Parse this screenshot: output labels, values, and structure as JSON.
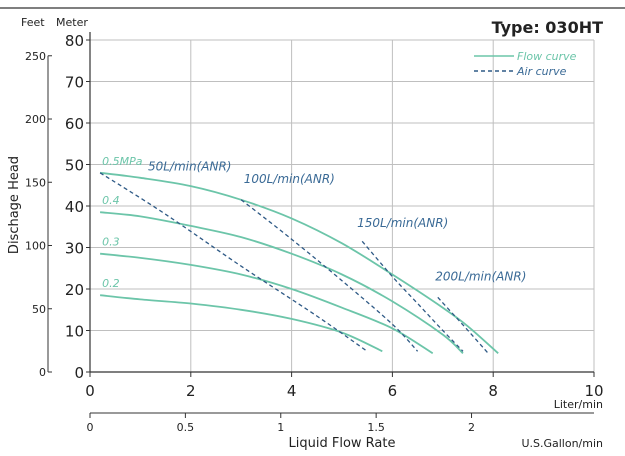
{
  "chart_data": {
    "type": "line",
    "title": "Type: 030HT",
    "ylabel": "Dischage Head",
    "y_units": {
      "feet": "Feet",
      "meter": "Meter"
    },
    "x_primary_unit": "Liter/min",
    "x_secondary_unit": "U.S.Gallon/min",
    "xlabel": "Liquid Flow Rate",
    "xlim": [
      0,
      10
    ],
    "ylim": [
      0,
      80
    ],
    "x_ticks": [
      0,
      2,
      4,
      6,
      8,
      10
    ],
    "y_meter_ticks": [
      0,
      10,
      20,
      30,
      40,
      50,
      60,
      70,
      80
    ],
    "y_feet_ticks": [
      0,
      50,
      100,
      150,
      200,
      250
    ],
    "x_gallon_ticks": [
      "0",
      "0.5",
      "1",
      "1.5",
      "2"
    ],
    "x_gallon_tick_values": [
      0,
      0.5,
      1,
      1.5,
      2
    ],
    "liters_per_gallon": 3.785,
    "meters_per_foot": 0.3048,
    "grid": true,
    "legend": {
      "position": "top-right",
      "items": [
        {
          "label": "Flow curve",
          "style": "solid",
          "color": "#6cc5a9"
        },
        {
          "label": "Air curve",
          "style": "dashed",
          "color": "#2f5a86"
        }
      ]
    },
    "flow_series": [
      {
        "name": "0.5MPa",
        "x": [
          0.2,
          1.0,
          2.0,
          3.0,
          4.0,
          5.0,
          6.0,
          7.0,
          7.5,
          8.1
        ],
        "y": [
          48.0,
          46.8,
          44.8,
          41.5,
          37.0,
          31.0,
          23.5,
          15.5,
          11.0,
          4.5
        ]
      },
      {
        "name": "0.4",
        "x": [
          0.2,
          1.0,
          2.0,
          3.0,
          4.0,
          5.0,
          6.0,
          7.0,
          7.4
        ],
        "y": [
          38.5,
          37.5,
          35.2,
          32.5,
          28.5,
          23.5,
          17.0,
          9.0,
          4.5
        ]
      },
      {
        "name": "0.3",
        "x": [
          0.2,
          1.0,
          2.0,
          3.0,
          4.0,
          5.0,
          6.0,
          6.8
        ],
        "y": [
          28.5,
          27.5,
          25.8,
          23.5,
          20.0,
          15.5,
          10.5,
          4.5
        ]
      },
      {
        "name": "0.2",
        "x": [
          0.2,
          1.0,
          2.0,
          3.0,
          4.0,
          5.0,
          5.8
        ],
        "y": [
          18.5,
          17.5,
          16.5,
          15.0,
          12.8,
          9.5,
          5.0
        ]
      }
    ],
    "air_series": [
      {
        "name": "50L/min(ANR)",
        "x": [
          0.2,
          1.5,
          3.0,
          4.5,
          5.5
        ],
        "y": [
          48.0,
          38.0,
          25.5,
          13.5,
          5.0
        ]
      },
      {
        "name": "100L/min(ANR)",
        "x": [
          3.0,
          4.0,
          5.0,
          6.0,
          6.5
        ],
        "y": [
          41.5,
          32.0,
          22.0,
          11.5,
          5.0
        ]
      },
      {
        "name": "150L/min(ANR)",
        "x": [
          5.4,
          6.0,
          6.5,
          7.0,
          7.4
        ],
        "y": [
          31.5,
          23.0,
          16.5,
          10.0,
          5.0
        ]
      },
      {
        "name": "200L/min(ANR)",
        "x": [
          6.9,
          7.2,
          7.5,
          7.9
        ],
        "y": [
          18.0,
          14.0,
          10.0,
          4.5
        ]
      }
    ]
  }
}
